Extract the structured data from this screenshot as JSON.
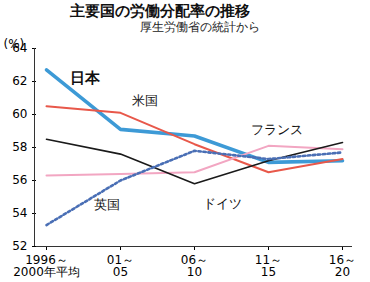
{
  "chart_data": {
    "type": "line",
    "title": "主要国の労働分配率の推移",
    "subtitle": "厚生労働省の統計から",
    "y_label": "(%)",
    "categories": [
      "1996～\n2000年平均",
      "01～\n05",
      "06～\n10",
      "11～\n15",
      "16～\n20"
    ],
    "series": [
      {
        "name": "日本",
        "color": "#3d9ad6",
        "values": [
          62.7,
          59.1,
          58.7,
          57.1,
          57.2
        ]
      },
      {
        "name": "米国",
        "color": "#e8584a",
        "values": [
          60.5,
          60.1,
          58.2,
          56.5,
          57.3
        ]
      },
      {
        "name": "フランス",
        "color": "#f2a6c2",
        "values": [
          56.3,
          56.4,
          56.5,
          58.1,
          57.9
        ]
      },
      {
        "name": "ドイツ",
        "color": "#1a1a1a",
        "values": [
          58.5,
          57.6,
          55.8,
          57.2,
          58.3
        ]
      },
      {
        "name": "英国",
        "color": "#4a6fb5",
        "line_style": "dotted",
        "values": [
          53.3,
          56.0,
          57.8,
          57.3,
          57.7
        ]
      }
    ],
    "ylim": [
      52,
      64
    ],
    "yticks": [
      52,
      54,
      56,
      58,
      60,
      62,
      64
    ],
    "grid": false
  }
}
